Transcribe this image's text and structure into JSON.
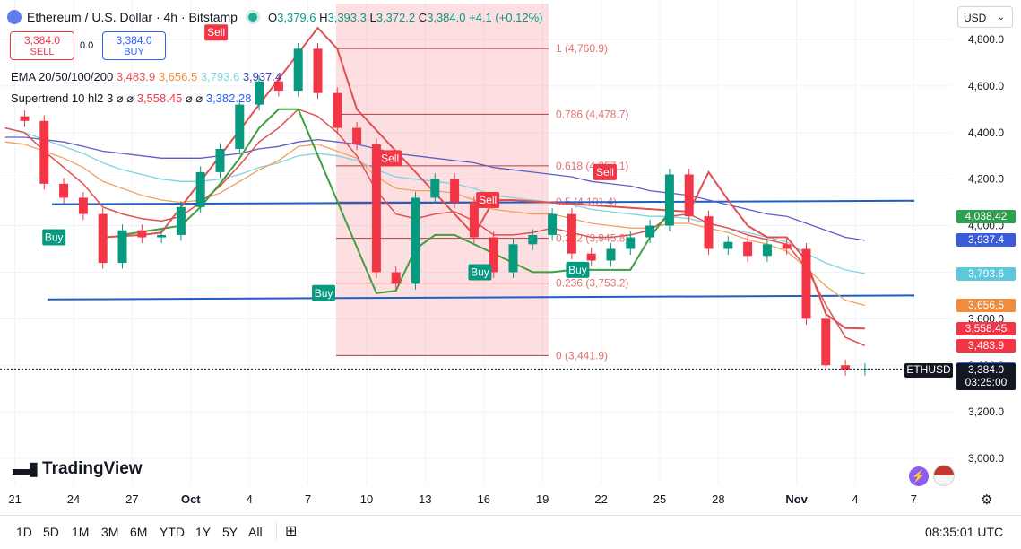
{
  "header": {
    "title": "Ethereum / U.S. Dollar · 4h · Bitstamp",
    "o_label": "O",
    "o": "3,379.6",
    "h_label": "H",
    "h": "3,393.3",
    "l_label": "L",
    "l": "3,372.2",
    "c_label": "C",
    "c": "3,384.0",
    "change": "+4.1 (+0.12%)"
  },
  "trade": {
    "sell_price": "3,384.0",
    "sell_label": "SELL",
    "spread": "0.0",
    "buy_price": "3,384.0",
    "buy_label": "BUY"
  },
  "currency": "USD",
  "indicators": {
    "ema_name": "EMA 20/50/100/200",
    "ema20": "3,483.9",
    "ema50": "3,656.5",
    "ema100": "3,793.6",
    "ema200": "3,937.4",
    "st_name": "Supertrend 10 hl2 3",
    "st_na1": "⌀ ⌀",
    "st_val": "3,558.45",
    "st_na2": "⌀ ⌀",
    "st_val2": "3,382.28"
  },
  "colors": {
    "up": "#089981",
    "down": "#f23645",
    "ema20": "#e05050",
    "ema50": "#f0a060",
    "ema100": "#7fd3e0",
    "ema200": "#5b5fc7",
    "supertrend_up": "#3f9e3f",
    "supertrend_down": "#e05050",
    "fib": "#e07070",
    "trendline": "#1f5fc4"
  },
  "fib_levels": [
    {
      "label": "1 (4,760.9)",
      "price": 4760.9
    },
    {
      "label": "0.786 (4,478.7)",
      "price": 4478.7
    },
    {
      "label": "0.618 (4,257.1)",
      "price": 4257.1
    },
    {
      "label": "0.5 (4,101.4)",
      "price": 4101.4
    },
    {
      "label": "0.382 (3,945.8)",
      "price": 3945.8
    },
    {
      "label": "0.236 (3,753.2)",
      "price": 3753.2
    },
    {
      "label": "0 (3,441.9)",
      "price": 3441.9
    }
  ],
  "signals": [
    {
      "label": "Sell",
      "type": "sell",
      "x_index": 7.3,
      "price": 4830
    },
    {
      "label": "Sell",
      "type": "sell",
      "x_index": 16.2,
      "price": 4290
    },
    {
      "label": "Sell",
      "type": "sell",
      "x_index": 21.2,
      "price": 4110
    },
    {
      "label": "Sell",
      "type": "sell",
      "x_index": 27.2,
      "price": 4230
    },
    {
      "label": "Buy",
      "type": "buy",
      "x_index": -1.0,
      "price": 3950
    },
    {
      "label": "Buy",
      "type": "buy",
      "x_index": 12.8,
      "price": 3710
    },
    {
      "label": "Buy",
      "type": "buy",
      "x_index": 20.8,
      "price": 3800
    },
    {
      "label": "Buy",
      "type": "buy",
      "x_index": 25.8,
      "price": 3810
    }
  ],
  "price_labels": [
    {
      "text": "4,038.42",
      "price": 4038.42,
      "color": "#2e9e4f"
    },
    {
      "text": "3,937.4",
      "price": 3937.4,
      "color": "#3b5bdb"
    },
    {
      "text": "3,793.6",
      "price": 3793.6,
      "color": "#5cc8dc"
    },
    {
      "text": "3,656.5",
      "price": 3656.5,
      "color": "#f08c3c"
    },
    {
      "text": "3,558.45",
      "price": 3558.45,
      "color": "#f23645"
    },
    {
      "text": "3,483.9",
      "price": 3483.9,
      "color": "#f23645"
    },
    {
      "text": "3,382.28",
      "price": 3382.28,
      "color": "#2962ff"
    }
  ],
  "last": {
    "symbol": "ETHUSD",
    "price": "3,384.0",
    "countdown": "03:25:00"
  },
  "time": "08:35:01 UTC",
  "timeframes": [
    "1D",
    "5D",
    "1M",
    "3M",
    "6M",
    "YTD",
    "1Y",
    "5Y",
    "All"
  ],
  "brand": "TradingView",
  "chart_data": {
    "type": "candlestick",
    "title": "Ethereum / U.S. Dollar · 4h · Bitstamp",
    "y_ticks": [
      "4,800.0",
      "4,600.0",
      "4,400.0",
      "4,200.0",
      "4,000.0",
      "3,800.0",
      "3,600.0",
      "3,400.0",
      "3,200.0",
      "3,000.0"
    ],
    "y_tick_values": [
      4800,
      4600,
      4400,
      4200,
      4000,
      3800,
      3600,
      3400,
      3200,
      3000
    ],
    "ylim": [
      2930,
      4870
    ],
    "x_ticks": [
      {
        "label": "21",
        "i": -3,
        "bold": false
      },
      {
        "label": "24",
        "i": 0,
        "bold": false
      },
      {
        "label": "27",
        "i": 3,
        "bold": false
      },
      {
        "label": "Oct",
        "i": 6,
        "bold": true
      },
      {
        "label": "4",
        "i": 9,
        "bold": false
      },
      {
        "label": "7",
        "i": 12,
        "bold": false
      },
      {
        "label": "10",
        "i": 15,
        "bold": false
      },
      {
        "label": "13",
        "i": 18,
        "bold": false
      },
      {
        "label": "16",
        "i": 21,
        "bold": false
      },
      {
        "label": "19",
        "i": 24,
        "bold": false
      },
      {
        "label": "22",
        "i": 27,
        "bold": false
      },
      {
        "label": "25",
        "i": 30,
        "bold": false
      },
      {
        "label": "28",
        "i": 33,
        "bold": false
      },
      {
        "label": "Nov",
        "i": 37,
        "bold": true
      },
      {
        "label": "4",
        "i": 40,
        "bold": false
      },
      {
        "label": "7",
        "i": 43,
        "bold": false
      }
    ],
    "closes": [
      4470,
      4450,
      4180,
      4120,
      4050,
      3840,
      3980,
      3950,
      3960,
      4080,
      4230,
      4330,
      4520,
      4620,
      4580,
      4760,
      4570,
      4420,
      4350,
      3800,
      3750,
      4120,
      4200,
      4100,
      3950,
      3800,
      3920,
      3960,
      4050,
      3880,
      3850,
      3900,
      3950,
      4000,
      4220,
      4040,
      3900,
      3930,
      3870,
      3920,
      3900,
      3600,
      3400,
      3380,
      3384
    ],
    "ema20": [
      4420,
      4400,
      4320,
      4250,
      4180,
      4080,
      4050,
      4030,
      4020,
      4040,
      4100,
      4170,
      4260,
      4360,
      4420,
      4500,
      4470,
      4400,
      4300,
      4150,
      4050,
      4030,
      4050,
      4060,
      4020,
      3960,
      3960,
      3970,
      3990,
      3970,
      3950,
      3950,
      3960,
      3980,
      4040,
      4050,
      4010,
      3990,
      3960,
      3940,
      3920,
      3820,
      3660,
      3520,
      3484
    ],
    "ema50": [
      4360,
      4350,
      4320,
      4290,
      4250,
      4190,
      4160,
      4130,
      4110,
      4100,
      4110,
      4140,
      4190,
      4240,
      4280,
      4340,
      4350,
      4320,
      4290,
      4210,
      4160,
      4150,
      4150,
      4140,
      4110,
      4070,
      4060,
      4050,
      4050,
      4030,
      4010,
      4000,
      3990,
      3990,
      4010,
      4010,
      3990,
      3970,
      3940,
      3920,
      3890,
      3820,
      3740,
      3680,
      3657
    ],
    "ema100": [
      4420,
      4400,
      4370,
      4340,
      4310,
      4270,
      4240,
      4220,
      4200,
      4190,
      4190,
      4200,
      4220,
      4250,
      4270,
      4300,
      4310,
      4300,
      4280,
      4240,
      4210,
      4200,
      4190,
      4180,
      4160,
      4130,
      4120,
      4110,
      4100,
      4090,
      4070,
      4060,
      4050,
      4040,
      4040,
      4030,
      4010,
      3990,
      3970,
      3950,
      3930,
      3880,
      3840,
      3810,
      3794
    ],
    "ema200": [
      4380,
      4380,
      4370,
      4360,
      4340,
      4320,
      4310,
      4300,
      4290,
      4290,
      4290,
      4300,
      4310,
      4330,
      4340,
      4360,
      4370,
      4360,
      4350,
      4330,
      4310,
      4300,
      4290,
      4280,
      4270,
      4250,
      4240,
      4230,
      4220,
      4210,
      4190,
      4180,
      4170,
      4150,
      4140,
      4130,
      4110,
      4090,
      4070,
      4050,
      4040,
      4010,
      3980,
      3950,
      3937
    ],
    "supertrend": [
      null,
      null,
      null,
      null,
      null,
      3950,
      3960,
      3960,
      3970,
      4000,
      4080,
      4180,
      4290,
      4420,
      4500,
      4500,
      4850,
      4760,
      4500,
      3710,
      3720,
      3900,
      3960,
      3960,
      3960,
      4110,
      4110,
      3800,
      3800,
      3810,
      3810,
      3810,
      3810,
      3950,
      4060,
      4060,
      4230,
      4110,
      4000,
      3950,
      3950,
      3850,
      3620,
      3560,
      3558
    ]
  }
}
